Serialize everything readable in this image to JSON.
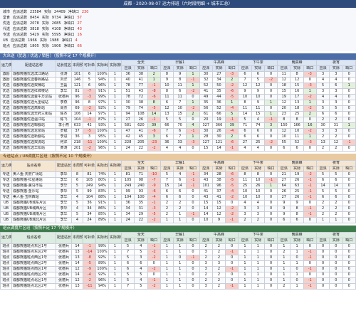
{
  "header": {
    "title": "成都 · 2020-08-07 运力排班（六时段明细 + 城市汇总）"
  },
  "summary": [
    [
      "城市",
      "应派总数",
      "23584",
      "实际",
      "24409",
      "净缺口",
      "230"
    ],
    [
      "堂食",
      "应派总数",
      "8454",
      "实际",
      "9734",
      "净缺口",
      "57"
    ],
    [
      "优选",
      "应派总数",
      "2078",
      "实际",
      "2685",
      "净缺口",
      "27"
    ],
    [
      "代送",
      "应派总数",
      "3818",
      "实际",
      "4108",
      "净缺口",
      "43"
    ],
    [
      "专送",
      "应派总数",
      "5429",
      "实际",
      "5595",
      "净缺口",
      "16"
    ],
    [
      "UB",
      "应派总数",
      "1966",
      "实际",
      "1988",
      "净缺口",
      "4"
    ],
    [
      "班点",
      "应派总数",
      "1805",
      "实际",
      "1906",
      "净缺口",
      "66"
    ]
  ],
  "sub_headers": [
    "应派",
    "实际",
    "缺口"
  ],
  "sections": [
    {
      "title": "大众送（优选 / 优选 / 销售）（按照不足 17 个规模开）",
      "theme": "blue",
      "fixed_headers": [
        "运力类型",
        "配送站名称",
        "站长姓名",
        "本周预计",
        "可补单人数",
        "实际出勤率",
        "实际排班率"
      ],
      "groups": [
        "全天",
        "早餐1",
        "午高峰",
        "下午茶",
        "晚高峰",
        "夜宵"
      ],
      "rows": [
        [
          "激励",
          "成都熊猫优选滨江路站",
          "张涛",
          "101",
          "6",
          "100%",
          "1",
          "36",
          "38",
          "2",
          "8",
          "9",
          "1",
          "30",
          "27",
          "-3",
          "6",
          "6",
          "0",
          "11",
          "8",
          "-3",
          "3",
          "3",
          "0"
        ],
        [
          "激励",
          "成都熊猫优选春熙路站",
          "刘洋",
          "146",
          "5",
          "94%",
          "1",
          "40",
          "41",
          "1",
          "9",
          "8",
          "-1",
          "32",
          "34",
          "2",
          "7",
          "5",
          "-2",
          "12",
          "12",
          "0",
          "4",
          "4",
          "0"
        ],
        [
          "优选",
          "成都熊猫优选双楠站",
          "王磊",
          "121",
          "6",
          "96%",
          "1",
          "78",
          "77",
          "-1",
          "10",
          "11",
          "1",
          "52",
          "50",
          "-2",
          "12",
          "12",
          "0",
          "18",
          "15",
          "-3",
          "5",
          "6",
          "1"
        ],
        [
          "优选",
          "成都熊猫优选红牌楼站",
          "李华",
          "81",
          "-7",
          "91%",
          "1",
          "51",
          "43",
          "-8",
          "8",
          "6",
          "-2",
          "41",
          "35",
          "-6",
          "9",
          "9",
          "0",
          "15",
          "16",
          "1",
          "3",
          "3",
          "0"
        ],
        [
          "优选",
          "成都熊猫优选金牛万达站",
          "张德兵",
          "96",
          "-3",
          "99%",
          "1",
          "78",
          "72",
          "-6",
          "11",
          "11",
          "0",
          "49",
          "44",
          "-5",
          "10",
          "10",
          "0",
          "19",
          "17",
          "-2",
          "4",
          "4",
          "0"
        ],
        [
          "优选",
          "成都熊猫优选九里堤站",
          "李燕",
          "96",
          "8",
          "97%",
          "1",
          "30",
          "38",
          "8",
          "6",
          "7",
          "1",
          "35",
          "36",
          "1",
          "8",
          "9",
          "1",
          "12",
          "13",
          "1",
          "3",
          "3",
          "0"
        ],
        [
          "优选",
          "成都熊猫优选高新站",
          "周杰",
          "69",
          "-2",
          "92%",
          "1",
          "79",
          "74",
          "-5",
          "12",
          "10",
          "-2",
          "56",
          "52",
          "-4",
          "11",
          "11",
          "0",
          "20",
          "18",
          "-2",
          "5",
          "5",
          "0"
        ],
        [
          "优选",
          "成都熊猫优选天府三街站",
          "陈杰",
          "106",
          "14",
          "97%",
          "1",
          "94",
          "108",
          "14",
          "13",
          "15",
          "2",
          "61",
          "66",
          "5",
          "14",
          "15",
          "1",
          "23",
          "25",
          "2",
          "6",
          "6",
          "0"
        ],
        [
          "优选",
          "成都熊猫优选温江站",
          "陈飞",
          "104",
          "-1",
          "87%",
          "1",
          "27",
          "26",
          "-1",
          "5",
          "5",
          "0",
          "20",
          "19",
          "-1",
          "5",
          "4",
          "-1",
          "8",
          "8",
          "0",
          "2",
          "2",
          "0"
        ],
        [
          "优选",
          "成都熊猫优选郫都站",
          "李小燕",
          "633",
          "42",
          "93%",
          "1",
          "581",
          "620",
          "39",
          "66",
          "70",
          "4",
          "327",
          "366",
          "39",
          "71",
          "74",
          "3",
          "150",
          "166",
          "16",
          "30",
          "31",
          "1"
        ],
        [
          "优选",
          "成都熊猫优选龙泉站",
          "罗斌",
          "37",
          "-5",
          "100%",
          "1",
          "47",
          "41",
          "-6",
          "7",
          "6",
          "-1",
          "30",
          "26",
          "-4",
          "6",
          "6",
          "0",
          "12",
          "10",
          "-2",
          "3",
          "3",
          "0"
        ],
        [
          "优选",
          "成都熊猫优选新都站",
          "李进",
          "36",
          "3",
          "95%",
          "1",
          "42",
          "45",
          "3",
          "6",
          "7",
          "1",
          "28",
          "30",
          "2",
          "6",
          "6",
          "0",
          "10",
          "11",
          "1",
          "2",
          "2",
          "0"
        ],
        [
          "优选",
          "成都熊猫优选双流站",
          "何洋",
          "218",
          "-11",
          "100%",
          "1",
          "228",
          "205",
          "-23",
          "36",
          "33",
          "-3",
          "127",
          "121",
          "-6",
          "27",
          "25",
          "-2",
          "55",
          "52",
          "-3",
          "13",
          "12",
          "-1"
        ],
        [
          "优选",
          "成都熊猫优选华阳站",
          "黄涛",
          "201",
          "-2",
          "96%",
          "1",
          "24",
          "22",
          "-2",
          "4",
          "4",
          "0",
          "15",
          "14",
          "-1",
          "4",
          "4",
          "0",
          "6",
          "6",
          "0",
          "2",
          "2",
          "0"
        ]
      ]
    },
    {
      "title": "专送站点 / UB调度片区班（按照不足 10 个规模开）",
      "theme": "tan",
      "fixed_headers": [
        "运力类型",
        "站点名称",
        "配送站长",
        "本周预计",
        "可补单人数",
        "实际出勤率",
        "实际排班率"
      ],
      "groups": [
        "全天",
        "早餐1",
        "午高峰",
        "下午茶",
        "晚高峰",
        "夜宵"
      ],
      "rows": [
        [
          "专送",
          "美人鱼·天府广场站",
          "李华",
          "8",
          "81",
          "74%",
          "1",
          "81",
          "71",
          "-10",
          "5",
          "4",
          "-1",
          "34",
          "28",
          "-6",
          "8",
          "8",
          "0",
          "21",
          "19",
          "-2",
          "5",
          "5",
          "0"
        ],
        [
          "专送",
          "成都熊猫·红星路站",
          "李华",
          "6",
          "105",
          "80%",
          "1",
          "105",
          "98",
          "-7",
          "7",
          "6",
          "-1",
          "43",
          "38",
          "-5",
          "11",
          "10",
          "-1",
          "27",
          "26",
          "-1",
          "6",
          "6",
          "0"
        ],
        [
          "专送",
          "成都熊猫·骡马市站",
          "李华",
          "5",
          "249",
          "94%",
          "1",
          "249",
          "240",
          "-9",
          "15",
          "14",
          "-1",
          "101",
          "96",
          "-5",
          "25",
          "26",
          "1",
          "64",
          "63",
          "-1",
          "14",
          "14",
          "0"
        ],
        [
          "专送",
          "成都熊猫·金沙站",
          "李华",
          "5",
          "99",
          "83%",
          "1",
          "99",
          "93",
          "-6",
          "6",
          "6",
          "0",
          "41",
          "37",
          "-4",
          "10",
          "10",
          "0",
          "26",
          "25",
          "-1",
          "5",
          "5",
          "0"
        ],
        [
          "专送",
          "美人鱼·玉林西站",
          "李华",
          "4",
          "104",
          "88%",
          "1",
          "104",
          "100",
          "-4",
          "6",
          "6",
          "0",
          "43",
          "41",
          "-2",
          "10",
          "10",
          "0",
          "27",
          "26",
          "-1",
          "6",
          "6",
          "0"
        ],
        [
          "UB",
          "成都熊猫UB城东片区",
          "李华",
          "5",
          "36",
          "91%",
          "1",
          "36",
          "35",
          "-1",
          "2",
          "2",
          "0",
          "15",
          "15",
          "0",
          "4",
          "4",
          "0",
          "9",
          "9",
          "0",
          "2",
          "2",
          "0"
        ],
        [
          "UB",
          "成都熊猫UB城西片区",
          "李华",
          "4",
          "34",
          "86%",
          "1",
          "34",
          "31",
          "-3",
          "2",
          "2",
          "0",
          "14",
          "12",
          "-2",
          "3",
          "3",
          "0",
          "9",
          "8",
          "-1",
          "2",
          "2",
          "0"
        ],
        [
          "UB",
          "成都熊猫UB城南片区",
          "李华",
          "5",
          "34",
          "85%",
          "1",
          "34",
          "29",
          "-5",
          "2",
          "1",
          "-1",
          "14",
          "12",
          "-2",
          "3",
          "3",
          "0",
          "9",
          "8",
          "-1",
          "2",
          "2",
          "0"
        ],
        [
          "UB",
          "成都熊猫UB城北片区",
          "李华",
          "4",
          "24",
          "89%",
          "1",
          "24",
          "22",
          "-2",
          "1",
          "1",
          "0",
          "10",
          "9",
          "-1",
          "2",
          "2",
          "0",
          "6",
          "6",
          "0",
          "1",
          "1",
          "0"
        ]
      ]
    },
    {
      "title": "班点调度片区班（按照不足 17 个规模开）",
      "theme": "green",
      "fixed_headers": [
        "运力类型",
        "班点名称",
        "配送站长",
        "本周预计",
        "可补单人数",
        "实际出勤率",
        "实际排班率"
      ],
      "groups": [
        "全天",
        "早餐1",
        "午高峰",
        "下午茶",
        "晚高峰",
        "夜宵"
      ],
      "rows": [
        [
          "班点",
          "成都熊猫班点东区1号",
          "张德兵",
          "14",
          "-1",
          "99%",
          "1",
          "5",
          "4",
          "-1",
          "1",
          "1",
          "0",
          "2",
          "2",
          "0",
          "1",
          "1",
          "0",
          "1",
          "1",
          "0",
          "0",
          "0",
          "0"
        ],
        [
          "班点",
          "成都熊猫班点东区2号",
          "张德兵",
          "13",
          "-14",
          "100%",
          "1",
          "7",
          "5",
          "-2",
          "1",
          "1",
          "0",
          "3",
          "2",
          "-1",
          "1",
          "1",
          "0",
          "2",
          "1",
          "-1",
          "0",
          "0",
          "0"
        ],
        [
          "班点",
          "成都熊猫班点西区1号",
          "张德兵",
          "13",
          "-8",
          "92%",
          "1",
          "5",
          "3",
          "-2",
          "1",
          "0",
          "-1",
          "2",
          "2",
          "0",
          "1",
          "1",
          "0",
          "1",
          "0",
          "-1",
          "0",
          "0",
          "0"
        ],
        [
          "班点",
          "成都熊猫班点西区2号",
          "张德兵",
          "14",
          "-5",
          "89%",
          "1",
          "6",
          "6",
          "0",
          "1",
          "1",
          "0",
          "3",
          "3",
          "0",
          "1",
          "1",
          "0",
          "1",
          "1",
          "0",
          "0",
          "0",
          "0"
        ],
        [
          "班点",
          "成都熊猫班点南区1号",
          "张德兵",
          "12",
          "-9",
          "100%",
          "1",
          "6",
          "4",
          "-2",
          "1",
          "1",
          "0",
          "3",
          "2",
          "-1",
          "1",
          "1",
          "0",
          "1",
          "0",
          "-1",
          "0",
          "0",
          "0"
        ],
        [
          "班点",
          "成都熊猫班点南区2号",
          "张德兵",
          "14",
          "-4",
          "92%",
          "1",
          "5",
          "5",
          "0",
          "1",
          "1",
          "0",
          "2",
          "2",
          "0",
          "1",
          "1",
          "0",
          "1",
          "1",
          "0",
          "0",
          "0",
          "0"
        ],
        [
          "班点",
          "成都熊猫班点北区1号",
          "张德兵",
          "12",
          "-2",
          "96%",
          "1",
          "5",
          "4",
          "-1",
          "1",
          "1",
          "0",
          "2",
          "2",
          "0",
          "1",
          "1",
          "0",
          "1",
          "0",
          "-1",
          "0",
          "0",
          "0"
        ],
        [
          "班点",
          "成都熊猫班点北区2号",
          "张德兵",
          "13",
          "-11",
          "94%",
          "1",
          "7",
          "5",
          "-2",
          "1",
          "1",
          "0",
          "3",
          "2",
          "-1",
          "1",
          "1",
          "0",
          "2",
          "1",
          "-1",
          "0",
          "0",
          "0"
        ]
      ]
    }
  ]
}
